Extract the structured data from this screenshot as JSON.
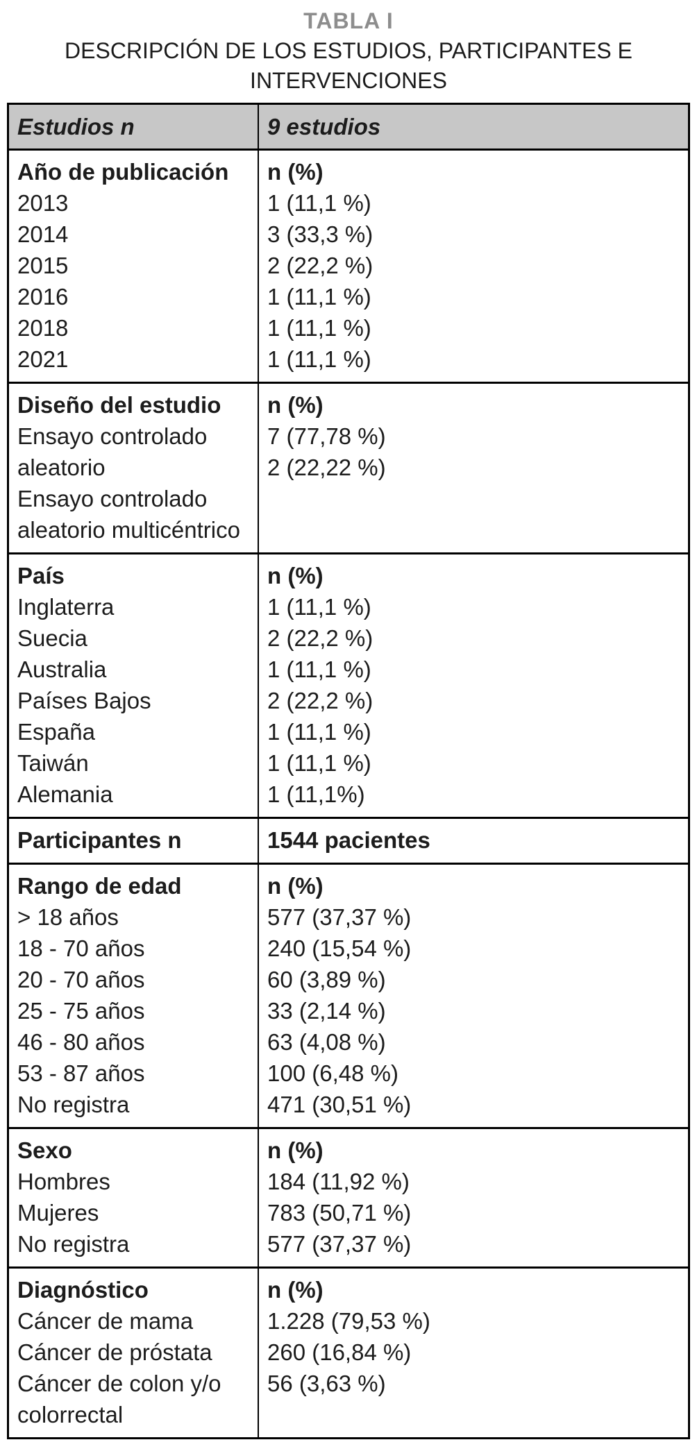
{
  "title": "TABLA I",
  "subtitle": "DESCRIPCIÓN DE LOS ESTUDIOS, PARTICIPANTES E INTERVENCIONES",
  "colors": {
    "header_bg": "#c7c7c7",
    "title_gray": "#8d8d8d",
    "text": "#1c1c1c",
    "border": "#000000"
  },
  "table": {
    "header": {
      "left": "Estudios n",
      "right": "9 estudios"
    },
    "sections": [
      {
        "id": "publication-year",
        "left": [
          "Año de publicación",
          "2013",
          "2014",
          "2015",
          "2016",
          "2018",
          "2021"
        ],
        "right": [
          "n (%)",
          "1 (11,1 %)",
          "3 (33,3 %)",
          "2 (22,2 %)",
          "1 (11,1 %)",
          "1 (11,1 %)",
          "1 (11,1 %)"
        ]
      },
      {
        "id": "study-design",
        "left": [
          "Diseño del estudio",
          "Ensayo controlado aleatorio",
          "Ensayo controlado aleatorio multicéntrico"
        ],
        "right": [
          "n (%)",
          "7 (77,78 %)",
          "2 (22,22 %)"
        ]
      },
      {
        "id": "country",
        "left": [
          "País",
          "Inglaterra",
          "Suecia",
          "Australia",
          "Países Bajos",
          "España",
          "Taiwán",
          "Alemania"
        ],
        "right": [
          "n (%)",
          "1 (11,1 %)",
          "2 (22,2 %)",
          "1 (11,1 %)",
          "2 (22,2 %)",
          "1 (11,1 %)",
          "1 (11,1 %)",
          "1 (11,1%)"
        ]
      },
      {
        "id": "participants",
        "left": [
          "Participantes n"
        ],
        "right": [
          "1544 pacientes"
        ]
      },
      {
        "id": "age-range",
        "left": [
          "Rango de edad",
          "> 18 años",
          "18 - 70 años",
          "20 - 70 años",
          "25 - 75 años",
          "46 - 80 años",
          "53 - 87 años",
          "No registra"
        ],
        "right": [
          "n (%)",
          "577 (37,37 %)",
          "240 (15,54 %)",
          "60 (3,89 %)",
          "33 (2,14 %)",
          "63 (4,08 %)",
          "100 (6,48 %)",
          "471 (30,51 %)"
        ]
      },
      {
        "id": "sex",
        "left": [
          "Sexo",
          "Hombres",
          "Mujeres",
          "No registra"
        ],
        "right": [
          "n (%)",
          "184 (11,92 %)",
          "783 (50,71 %)",
          "577 (37,37 %)"
        ]
      },
      {
        "id": "diagnosis",
        "left": [
          "Diagnóstico",
          "Cáncer de mama",
          "Cáncer de próstata",
          "Cáncer de colon y/o colorrectal"
        ],
        "right": [
          "n (%)",
          "1.228 (79,53 %)",
          "260 (16,84 %)",
          "56 (3,63 %)"
        ]
      }
    ]
  }
}
